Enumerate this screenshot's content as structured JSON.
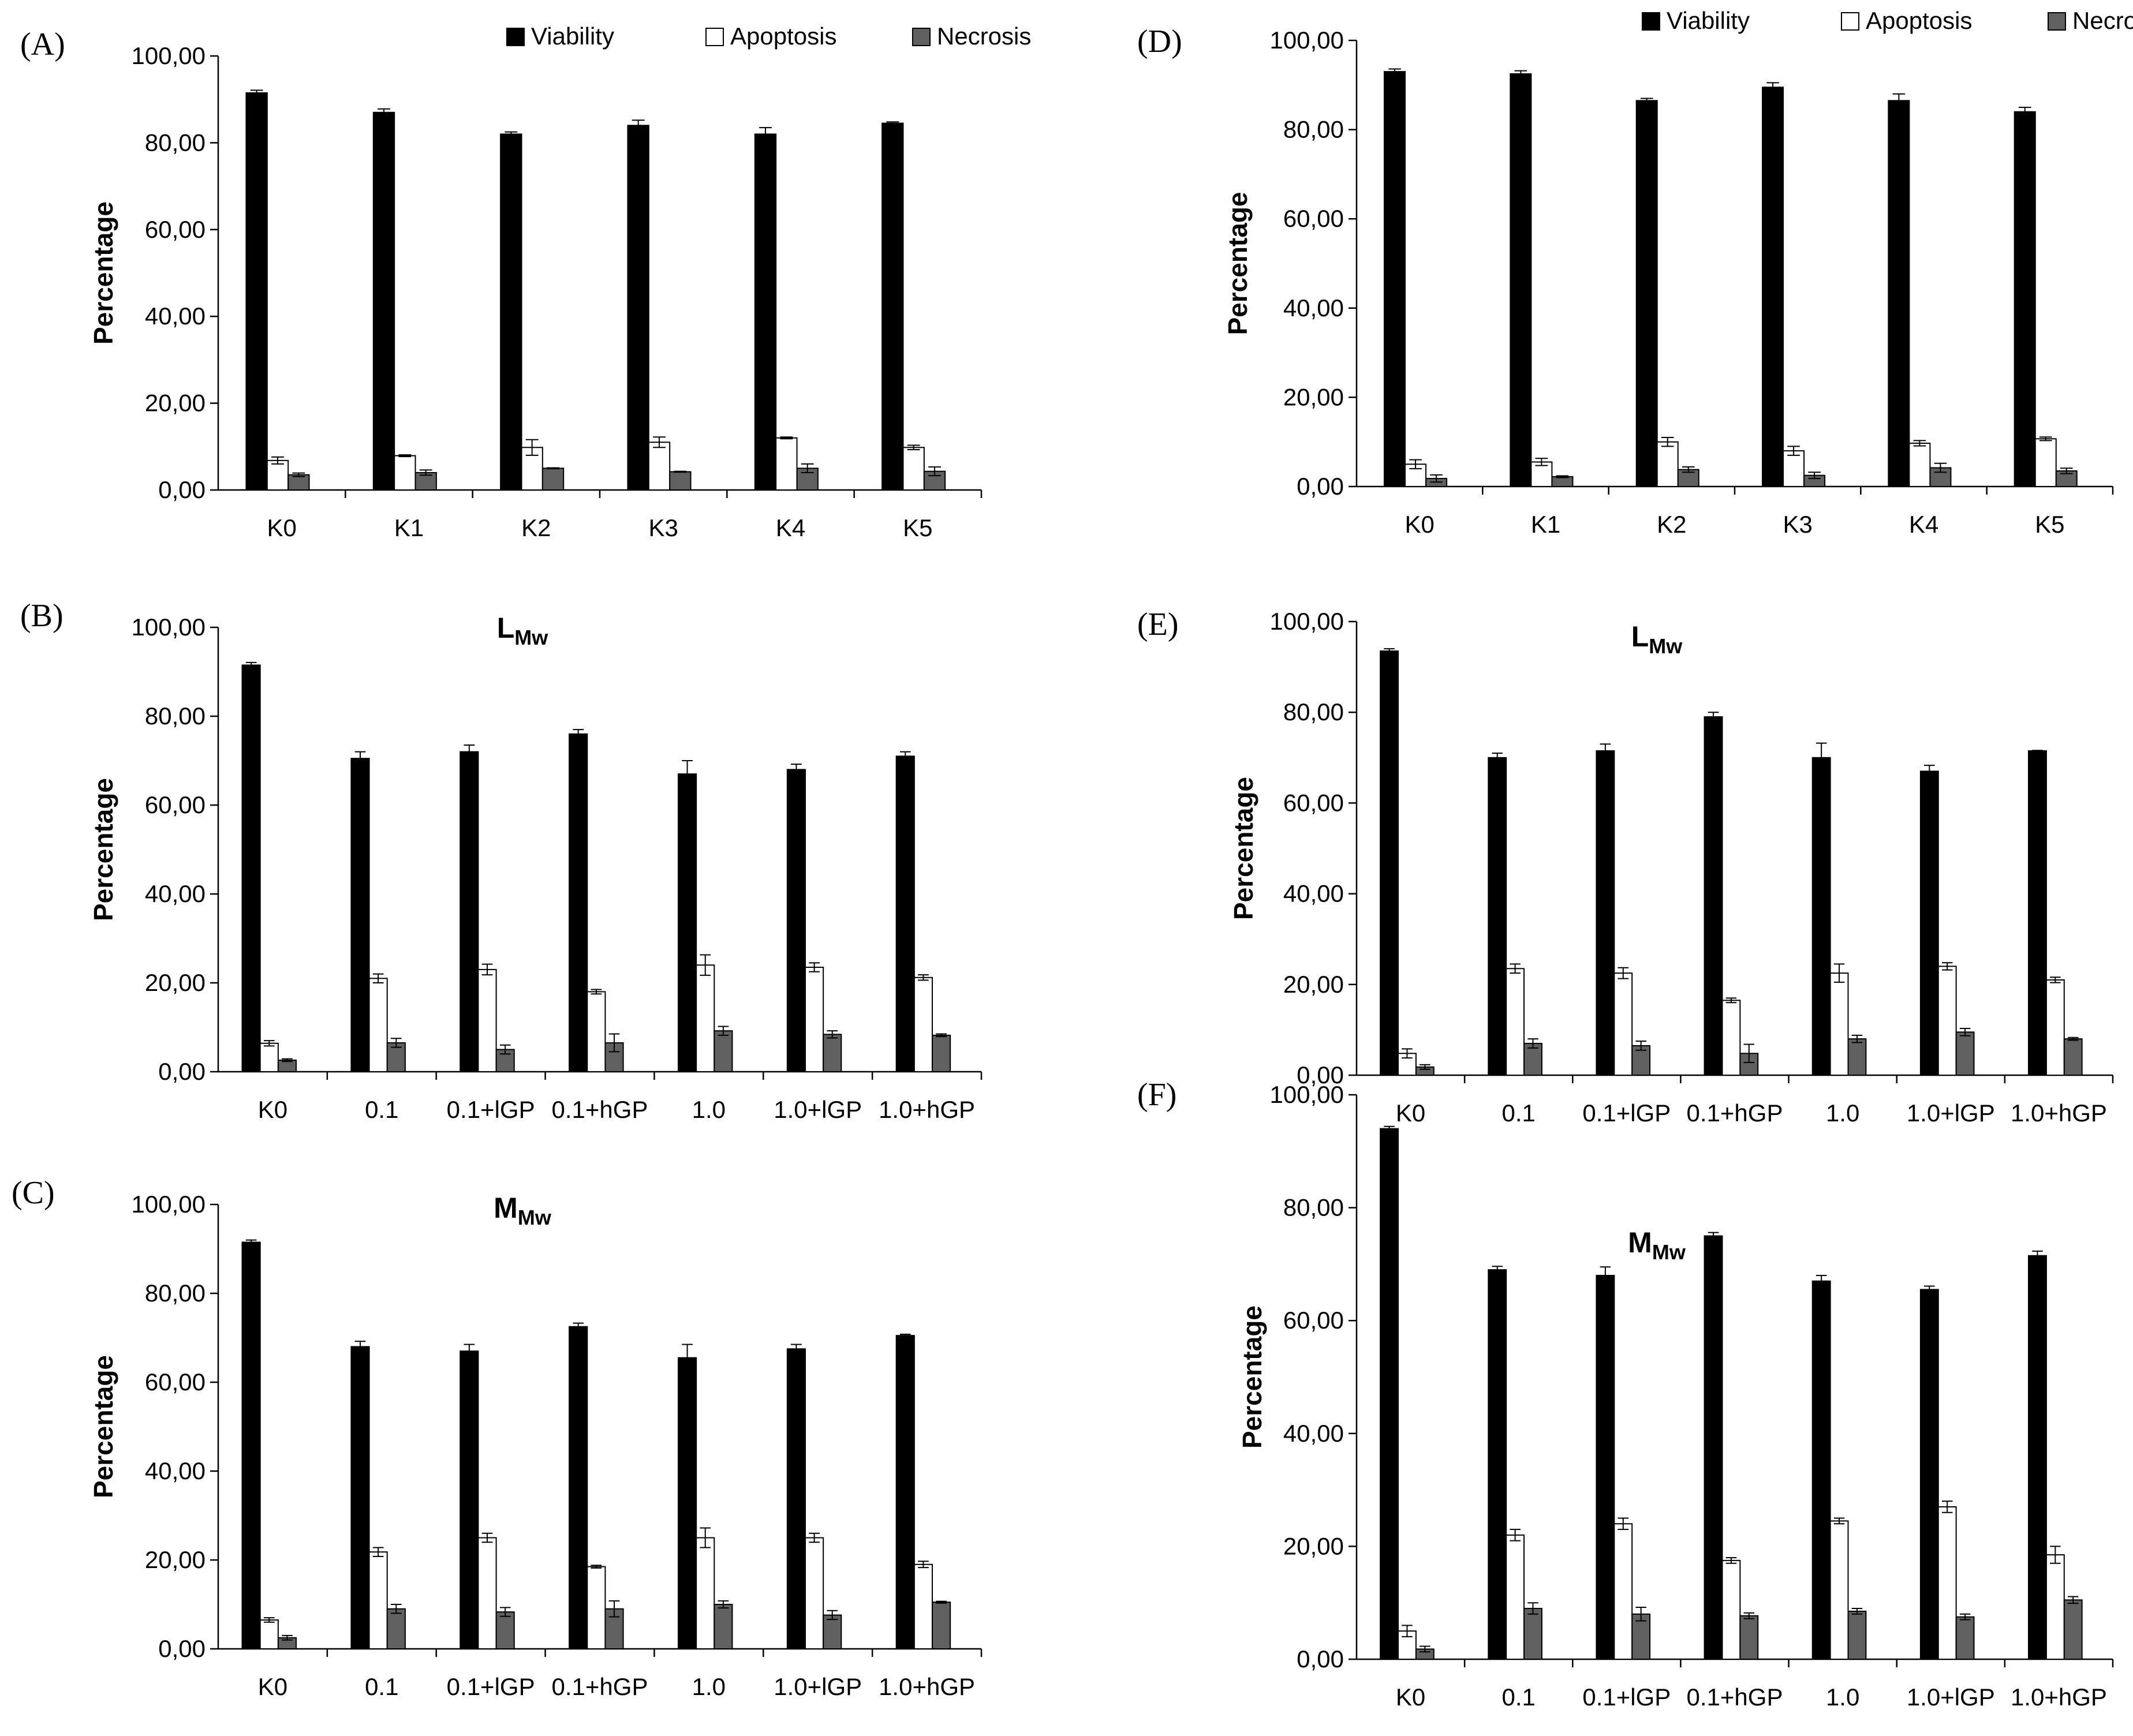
{
  "figure": {
    "legend": [
      {
        "label": "Viability",
        "color": "#000000"
      },
      {
        "label": "Apoptosis",
        "color": "#ffffff"
      },
      {
        "label": "Necrosis",
        "color": "#606060"
      }
    ]
  },
  "chart_data": [
    {
      "panel": "(A)",
      "type": "bar",
      "title": "",
      "ylabel": "Percentage",
      "ylim": [
        0,
        100
      ],
      "yticks": [
        "0,00",
        "20,00",
        "40,00",
        "60,00",
        "80,00",
        "100,00"
      ],
      "categories": [
        "K0",
        "K1",
        "K2",
        "K3",
        "K4",
        "K5"
      ],
      "series": [
        {
          "name": "Viability",
          "values": [
            91.5,
            87.0,
            82.0,
            84.0,
            82.0,
            84.5
          ],
          "errors": [
            0.6,
            0.8,
            0.5,
            1.2,
            1.5,
            0.3
          ]
        },
        {
          "name": "Apoptosis",
          "values": [
            6.8,
            7.9,
            9.8,
            11.0,
            12.0,
            9.8
          ],
          "errors": [
            0.8,
            0.2,
            1.8,
            1.2,
            0.2,
            0.5
          ]
        },
        {
          "name": "Necrosis",
          "values": [
            3.5,
            4.0,
            5.0,
            4.2,
            5.0,
            4.3
          ],
          "errors": [
            0.4,
            0.6,
            0.1,
            0.1,
            1.0,
            1.0
          ]
        }
      ]
    },
    {
      "panel": "(B)",
      "type": "bar",
      "title": "L",
      "title_sub": "Mw",
      "ylabel": "Percentage",
      "ylim": [
        0,
        100
      ],
      "yticks": [
        "0,00",
        "20,00",
        "40,00",
        "60,00",
        "80,00",
        "100,00"
      ],
      "categories": [
        "K0",
        "0.1",
        "0.1+lGP",
        "0.1+hGP",
        "1.0",
        "1.0+lGP",
        "1.0+hGP"
      ],
      "series": [
        {
          "name": "Viability",
          "values": [
            91.5,
            70.5,
            72.0,
            76.0,
            67.0,
            68.0,
            71.0
          ],
          "errors": [
            0.6,
            1.5,
            1.5,
            1.0,
            3.0,
            1.2,
            1.0
          ]
        },
        {
          "name": "Apoptosis",
          "values": [
            6.4,
            21.0,
            23.0,
            18.0,
            24.0,
            23.5,
            21.2
          ],
          "errors": [
            0.6,
            1.0,
            1.2,
            0.5,
            2.3,
            1.0,
            0.6
          ]
        },
        {
          "name": "Necrosis",
          "values": [
            2.6,
            6.5,
            5.0,
            6.5,
            9.2,
            8.4,
            8.2
          ],
          "errors": [
            0.3,
            1.0,
            1.0,
            2.0,
            1.0,
            0.8,
            0.3
          ]
        }
      ]
    },
    {
      "panel": "(C)",
      "type": "bar",
      "title": "M",
      "title_sub": "Mw",
      "ylabel": "Percentage",
      "ylim": [
        0,
        100
      ],
      "yticks": [
        "0,00",
        "20,00",
        "40,00",
        "60,00",
        "80,00",
        "100,00"
      ],
      "categories": [
        "K0",
        "0.1",
        "0.1+lGP",
        "0.1+hGP",
        "1.0",
        "1.0+lGP",
        "1.0+hGP"
      ],
      "series": [
        {
          "name": "Viability",
          "values": [
            91.5,
            68.0,
            67.0,
            72.5,
            65.5,
            67.5,
            70.5
          ],
          "errors": [
            0.5,
            1.2,
            1.5,
            0.8,
            3.0,
            1.0,
            0.3
          ]
        },
        {
          "name": "Apoptosis",
          "values": [
            6.5,
            21.8,
            25.0,
            18.5,
            25.0,
            25.0,
            19.0
          ],
          "errors": [
            0.5,
            1.0,
            1.0,
            0.3,
            2.2,
            1.0,
            0.7
          ]
        },
        {
          "name": "Necrosis",
          "values": [
            2.5,
            9.0,
            8.3,
            9.0,
            10.0,
            7.6,
            10.5
          ],
          "errors": [
            0.5,
            1.0,
            1.0,
            1.8,
            0.8,
            1.0,
            0.2
          ]
        }
      ]
    },
    {
      "panel": "(D)",
      "type": "bar",
      "title": "",
      "ylabel": "Percentage",
      "ylim": [
        0,
        100
      ],
      "yticks": [
        "0,00",
        "20,00",
        "40,00",
        "60,00",
        "80,00",
        "100,00"
      ],
      "categories": [
        "K0",
        "K1",
        "K2",
        "K3",
        "K4",
        "K5"
      ],
      "series": [
        {
          "name": "Viability",
          "values": [
            93.0,
            92.5,
            86.5,
            89.5,
            86.5,
            84.0
          ],
          "errors": [
            0.6,
            0.7,
            0.5,
            1.0,
            1.5,
            1.0
          ]
        },
        {
          "name": "Apoptosis",
          "values": [
            5.0,
            5.5,
            10.0,
            8.0,
            9.7,
            10.7
          ],
          "errors": [
            1.0,
            0.8,
            1.0,
            1.0,
            0.6,
            0.4
          ]
        },
        {
          "name": "Necrosis",
          "values": [
            1.8,
            2.2,
            3.8,
            2.5,
            4.2,
            3.5
          ],
          "errors": [
            0.8,
            0.2,
            0.6,
            0.7,
            1.0,
            0.6
          ]
        }
      ]
    },
    {
      "panel": "(E)",
      "type": "bar",
      "title": "L",
      "title_sub": "Mw",
      "ylabel": "Percentage",
      "ylim": [
        0,
        100
      ],
      "yticks": [
        "0,00",
        "20,00",
        "40,00",
        "60,00",
        "80,00",
        "100,00"
      ],
      "categories": [
        "K0",
        "0.1",
        "0.1+lGP",
        "0.1+hGP",
        "1.0",
        "1.0+lGP",
        "1.0+hGP"
      ],
      "series": [
        {
          "name": "Viability",
          "values": [
            93.5,
            70.0,
            71.5,
            79.0,
            70.0,
            67.0,
            71.5
          ],
          "errors": [
            0.5,
            1.0,
            1.5,
            1.0,
            3.2,
            1.3,
            0.1
          ]
        },
        {
          "name": "Apoptosis",
          "values": [
            4.8,
            23.5,
            22.5,
            16.5,
            22.5,
            24.0,
            21.0
          ],
          "errors": [
            1.0,
            1.0,
            1.2,
            0.5,
            2.0,
            0.8,
            0.6
          ]
        },
        {
          "name": "Necrosis",
          "values": [
            1.8,
            7.0,
            6.5,
            4.8,
            8.0,
            9.5,
            8.0
          ],
          "errors": [
            0.5,
            1.0,
            1.0,
            2.0,
            0.8,
            0.8,
            0.3
          ]
        }
      ]
    },
    {
      "panel": "(F)",
      "type": "bar",
      "title": "M",
      "title_sub": "Mw",
      "ylabel": "Percentage",
      "ylim": [
        0,
        100
      ],
      "yticks": [
        "0,00",
        "20,00",
        "40,00",
        "60,00",
        "80,00",
        "100,00"
      ],
      "categories": [
        "K0",
        "0.1",
        "0.1+lGP",
        "0.1+hGP",
        "1.0",
        "1.0+lGP",
        "1.0+hGP"
      ],
      "series": [
        {
          "name": "Viability",
          "values": [
            94.0,
            69.0,
            68.0,
            75.0,
            67.0,
            65.5,
            71.5
          ],
          "errors": [
            0.4,
            0.6,
            1.5,
            0.6,
            1.0,
            0.6,
            0.8
          ]
        },
        {
          "name": "Apoptosis",
          "values": [
            5.0,
            22.0,
            24.0,
            17.5,
            24.5,
            27.0,
            18.5
          ],
          "errors": [
            1.0,
            1.0,
            1.0,
            0.5,
            0.5,
            1.0,
            1.5
          ]
        },
        {
          "name": "Necrosis",
          "values": [
            1.8,
            9.0,
            8.0,
            7.7,
            8.5,
            7.5,
            10.5
          ],
          "errors": [
            0.5,
            1.0,
            1.2,
            0.5,
            0.5,
            0.5,
            0.6
          ]
        }
      ]
    }
  ]
}
